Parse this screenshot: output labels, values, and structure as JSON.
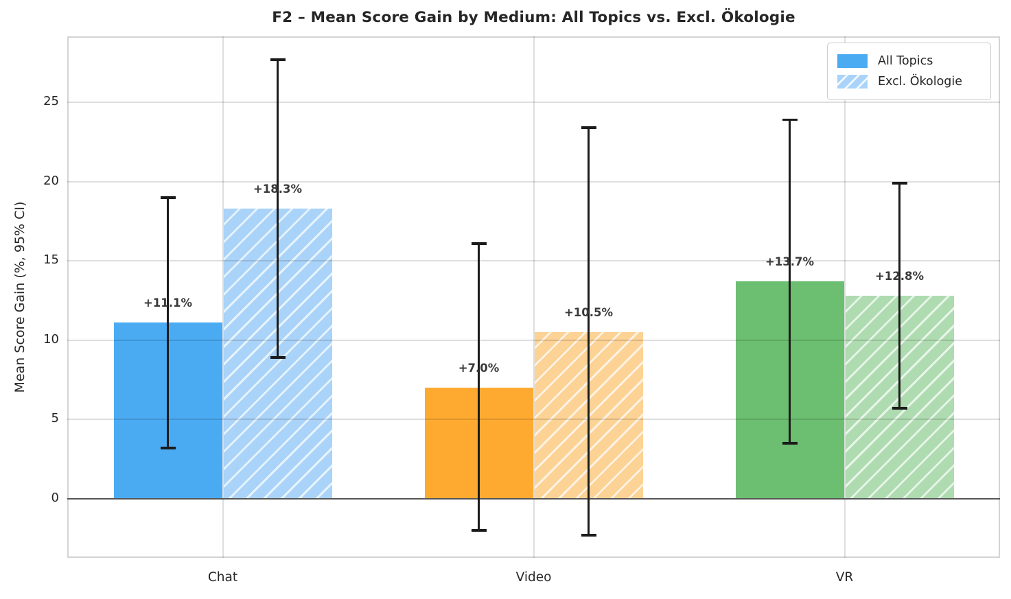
{
  "title": "F2 – Mean Score Gain by Medium: All Topics vs. Excl. Ökologie",
  "chart_data": {
    "type": "bar",
    "title": "F2 – Mean Score Gain by Medium: All Topics vs. Excl. Ökologie",
    "xlabel": "",
    "ylabel": "Mean Score Gain (%, 95% CI)",
    "categories": [
      "Chat",
      "Video",
      "VR"
    ],
    "yticks": [
      0,
      5,
      10,
      15,
      20,
      25
    ],
    "ylim": [
      -3.72,
      29.15
    ],
    "grid": true,
    "legend_position": "upper right",
    "series": [
      {
        "name": "All Topics",
        "values": [
          11.1,
          7.0,
          13.7
        ],
        "labels": [
          "+11.1%",
          "+7.0%",
          "+13.7%"
        ],
        "ci_low": [
          3.2,
          -2.0,
          3.5
        ],
        "ci_high": [
          19.0,
          16.1,
          23.9
        ],
        "colors": [
          "#4aabf2",
          "#feaa31",
          "#6cbe70"
        ],
        "hatch": false
      },
      {
        "name": "Excl. Ökologie",
        "values": [
          18.3,
          10.5,
          12.8
        ],
        "labels": [
          "+18.3%",
          "+10.5%",
          "+12.8%"
        ],
        "ci_low": [
          8.9,
          -2.3,
          5.7
        ],
        "ci_high": [
          27.7,
          23.4,
          19.9
        ],
        "colors": [
          "#a9d3f8",
          "#fcd295",
          "#aedbb0"
        ],
        "hatch": true
      }
    ],
    "error_bar_color": "#1b1b1b",
    "grid_color": "#d9d9d9",
    "zero_line_color": "#555555",
    "background_color": "#ffffff"
  },
  "legend": {
    "items": [
      {
        "label": "All Topics",
        "hatch": false
      },
      {
        "label": "Excl. Ökologie",
        "hatch": true
      }
    ]
  }
}
